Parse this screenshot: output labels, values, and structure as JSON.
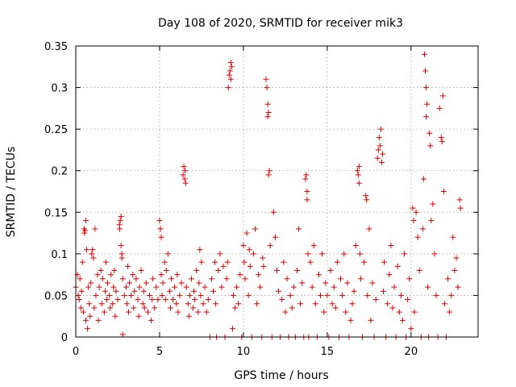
{
  "chart_data": {
    "type": "scatter",
    "title": "Day 108 of 2020, SRMTID for receiver mik3",
    "xlabel": "GPS time / hours",
    "ylabel": "SRMTID / TECUs",
    "xlim": [
      0,
      24
    ],
    "ylim": [
      0,
      0.35
    ],
    "xticks": [
      0,
      5,
      10,
      15,
      20
    ],
    "xtick_labels": [
      "0",
      "5",
      "10",
      "15",
      "20"
    ],
    "yticks": [
      0,
      0.05,
      0.1,
      0.15,
      0.2,
      0.25,
      0.3,
      0.35
    ],
    "ytick_labels": [
      "0",
      "0.05",
      "0.1",
      "0.15",
      "0.2",
      "0.25",
      "0.3",
      "0.35"
    ],
    "grid": true,
    "marker": "plus",
    "color": "#e00000",
    "series": [
      {
        "name": "SRMTID",
        "points": [
          [
            0.0,
            0.06
          ],
          [
            0.1,
            0.075
          ],
          [
            0.15,
            0.05
          ],
          [
            0.2,
            0.045
          ],
          [
            0.25,
            0.07
          ],
          [
            0.3,
            0.035
          ],
          [
            0.35,
            0.055
          ],
          [
            0.4,
            0.09
          ],
          [
            0.45,
            0.03
          ],
          [
            0.5,
            0.13
          ],
          [
            0.52,
            0.125
          ],
          [
            0.55,
            0.128
          ],
          [
            0.6,
            0.14
          ],
          [
            0.6,
            0.02
          ],
          [
            0.65,
            0.105
          ],
          [
            0.7,
            0.01
          ],
          [
            0.75,
            0.06
          ],
          [
            0.8,
            0.04
          ],
          [
            0.85,
            0.025
          ],
          [
            0.9,
            0.065
          ],
          [
            0.95,
            0.1
          ],
          [
            1.0,
            0.105
          ],
          [
            1.05,
            0.095
          ],
          [
            1.1,
            0.035
          ],
          [
            1.15,
            0.13
          ],
          [
            1.2,
            0.05
          ],
          [
            1.3,
            0.075
          ],
          [
            1.35,
            0.02
          ],
          [
            1.4,
            0.06
          ],
          [
            1.5,
            0.08
          ],
          [
            1.55,
            0.04
          ],
          [
            1.6,
            0.07
          ],
          [
            1.7,
            0.03
          ],
          [
            1.75,
            0.055
          ],
          [
            1.8,
            0.09
          ],
          [
            1.85,
            0.045
          ],
          [
            1.9,
            0.065
          ],
          [
            2.0,
            0.05
          ],
          [
            2.05,
            0.035
          ],
          [
            2.1,
            0.075
          ],
          [
            2.2,
            0.04
          ],
          [
            2.25,
            0.06
          ],
          [
            2.3,
            0.08
          ],
          [
            2.35,
            0.025
          ],
          [
            2.4,
            0.055
          ],
          [
            2.5,
            0.045
          ],
          [
            2.6,
            0.135
          ],
          [
            2.62,
            0.13
          ],
          [
            2.65,
            0.14
          ],
          [
            2.7,
            0.145
          ],
          [
            2.7,
            0.11
          ],
          [
            2.75,
            0.1
          ],
          [
            2.75,
            0.095
          ],
          [
            2.8,
            0.07
          ],
          [
            2.8,
            0.003
          ],
          [
            2.9,
            0.05
          ],
          [
            3.0,
            0.06
          ],
          [
            3.05,
            0.04
          ],
          [
            3.1,
            0.085
          ],
          [
            3.15,
            0.03
          ],
          [
            3.2,
            0.065
          ],
          [
            3.3,
            0.05
          ],
          [
            3.4,
            0.075
          ],
          [
            3.45,
            0.035
          ],
          [
            3.5,
            0.055
          ],
          [
            3.6,
            0.07
          ],
          [
            3.7,
            0.045
          ],
          [
            3.75,
            0.025
          ],
          [
            3.8,
            0.06
          ],
          [
            3.9,
            0.08
          ],
          [
            4.0,
            0.04
          ],
          [
            4.05,
            0.055
          ],
          [
            4.1,
            0.035
          ],
          [
            4.2,
            0.065
          ],
          [
            4.3,
            0.03
          ],
          [
            4.4,
            0.05
          ],
          [
            4.5,
            0.02
          ],
          [
            4.55,
            0.045
          ],
          [
            4.6,
            0.07
          ],
          [
            4.7,
            0.035
          ],
          [
            4.8,
            0.06
          ],
          [
            4.9,
            0.045
          ],
          [
            5.0,
            0.14
          ],
          [
            5.05,
            0.13
          ],
          [
            5.1,
            0.12
          ],
          [
            5.1,
            0.075
          ],
          [
            5.15,
            0.05
          ],
          [
            5.2,
            0.065
          ],
          [
            5.3,
            0.09
          ],
          [
            5.35,
            0.045
          ],
          [
            5.4,
            0.08
          ],
          [
            5.5,
            0.1
          ],
          [
            5.6,
            0.055
          ],
          [
            5.65,
            0.035
          ],
          [
            5.7,
            0.07
          ],
          [
            5.8,
            0.045
          ],
          [
            5.9,
            0.06
          ],
          [
            6.0,
            0.04
          ],
          [
            6.05,
            0.075
          ],
          [
            6.1,
            0.03
          ],
          [
            6.2,
            0.05
          ],
          [
            6.3,
            0.065
          ],
          [
            6.4,
            0.195
          ],
          [
            6.45,
            0.205
          ],
          [
            6.5,
            0.19
          ],
          [
            6.52,
            0.2
          ],
          [
            6.55,
            0.185
          ],
          [
            6.6,
            0.06
          ],
          [
            6.7,
            0.04
          ],
          [
            6.75,
            0.025
          ],
          [
            6.8,
            0.05
          ],
          [
            6.9,
            0.07
          ],
          [
            7.0,
            0.035
          ],
          [
            7.05,
            0.055
          ],
          [
            7.1,
            0.045
          ],
          [
            7.2,
            0.08
          ],
          [
            7.3,
            0.03
          ],
          [
            7.35,
            0.065
          ],
          [
            7.4,
            0.105
          ],
          [
            7.45,
            0.05
          ],
          [
            7.5,
            0.09
          ],
          [
            7.6,
            0.04
          ],
          [
            7.7,
            0.06
          ],
          [
            7.8,
            0.03
          ],
          [
            7.9,
            0.045
          ],
          [
            8.0,
            0.0
          ],
          [
            8.1,
            0.07
          ],
          [
            8.2,
            0.055
          ],
          [
            8.3,
            0.09
          ],
          [
            8.35,
            0.04
          ],
          [
            8.4,
            0.0
          ],
          [
            8.5,
            0.08
          ],
          [
            8.6,
            0.1
          ],
          [
            8.7,
            0.06
          ],
          [
            8.8,
            0.085
          ],
          [
            8.9,
            0.0
          ],
          [
            9.0,
            0.07
          ],
          [
            9.05,
            0.09
          ],
          [
            9.1,
            0.3
          ],
          [
            9.15,
            0.315
          ],
          [
            9.2,
            0.32
          ],
          [
            9.25,
            0.33
          ],
          [
            9.25,
            0.31
          ],
          [
            9.3,
            0.325
          ],
          [
            9.35,
            0.01
          ],
          [
            9.4,
            0.05
          ],
          [
            9.5,
            0.035
          ],
          [
            9.6,
            0.06
          ],
          [
            9.7,
            0.04
          ],
          [
            9.8,
            0.075
          ],
          [
            9.9,
            0.0
          ],
          [
            10.0,
            0.11
          ],
          [
            10.05,
            0.09
          ],
          [
            10.1,
            0.07
          ],
          [
            10.2,
            0.125
          ],
          [
            10.3,
            0.05
          ],
          [
            10.35,
            0.105
          ],
          [
            10.4,
            0.085
          ],
          [
            10.5,
            0.0
          ],
          [
            10.6,
            0.1
          ],
          [
            10.7,
            0.13
          ],
          [
            10.8,
            0.04
          ],
          [
            10.9,
            0.075
          ],
          [
            11.0,
            0.06
          ],
          [
            11.1,
            0.0
          ],
          [
            11.15,
            0.095
          ],
          [
            11.2,
            0.085
          ],
          [
            11.35,
            0.31
          ],
          [
            11.4,
            0.3
          ],
          [
            11.45,
            0.28
          ],
          [
            11.45,
            0.265
          ],
          [
            11.5,
            0.27
          ],
          [
            11.5,
            0.195
          ],
          [
            11.55,
            0.2
          ],
          [
            11.6,
            0.11
          ],
          [
            11.7,
            0.0
          ],
          [
            11.8,
            0.15
          ],
          [
            11.9,
            0.12
          ],
          [
            12.0,
            0.08
          ],
          [
            12.1,
            0.055
          ],
          [
            12.2,
            0.0
          ],
          [
            12.3,
            0.045
          ],
          [
            12.4,
            0.09
          ],
          [
            12.5,
            0.03
          ],
          [
            12.6,
            0.07
          ],
          [
            12.7,
            0.0
          ],
          [
            12.8,
            0.05
          ],
          [
            12.9,
            0.035
          ],
          [
            13.0,
            0.06
          ],
          [
            13.1,
            0.0
          ],
          [
            13.2,
            0.08
          ],
          [
            13.3,
            0.13
          ],
          [
            13.4,
            0.04
          ],
          [
            13.5,
            0.065
          ],
          [
            13.6,
            0.0
          ],
          [
            13.7,
            0.19
          ],
          [
            13.75,
            0.195
          ],
          [
            13.8,
            0.175
          ],
          [
            13.8,
            0.165
          ],
          [
            13.85,
            0.1
          ],
          [
            13.9,
            0.0
          ],
          [
            14.0,
            0.09
          ],
          [
            14.1,
            0.06
          ],
          [
            14.2,
            0.11
          ],
          [
            14.3,
            0.04
          ],
          [
            14.4,
            0.0
          ],
          [
            14.5,
            0.075
          ],
          [
            14.6,
            0.05
          ],
          [
            14.7,
            0.1
          ],
          [
            14.8,
            0.03
          ],
          [
            14.9,
            0.065
          ],
          [
            15.0,
            0.05
          ],
          [
            15.1,
            0.0
          ],
          [
            15.2,
            0.08
          ],
          [
            15.3,
            0.04
          ],
          [
            15.4,
            0.06
          ],
          [
            15.5,
            0.035
          ],
          [
            15.6,
            0.09
          ],
          [
            15.7,
            0.0
          ],
          [
            15.8,
            0.07
          ],
          [
            15.9,
            0.05
          ],
          [
            16.0,
            0.1
          ],
          [
            16.1,
            0.03
          ],
          [
            16.2,
            0.065
          ],
          [
            16.3,
            0.0
          ],
          [
            16.4,
            0.02
          ],
          [
            16.5,
            0.04
          ],
          [
            16.6,
            0.055
          ],
          [
            16.7,
            0.11
          ],
          [
            16.8,
            0.2
          ],
          [
            16.85,
            0.195
          ],
          [
            16.9,
            0.205
          ],
          [
            16.9,
            0.185
          ],
          [
            16.95,
            0.1
          ],
          [
            17.0,
            0.07
          ],
          [
            17.1,
            0.0
          ],
          [
            17.2,
            0.09
          ],
          [
            17.3,
            0.17
          ],
          [
            17.35,
            0.165
          ],
          [
            17.4,
            0.05
          ],
          [
            17.5,
            0.13
          ],
          [
            17.6,
            0.02
          ],
          [
            17.7,
            0.065
          ],
          [
            17.8,
            0.0
          ],
          [
            17.9,
            0.045
          ],
          [
            18.0,
            0.215
          ],
          [
            18.05,
            0.225
          ],
          [
            18.1,
            0.24
          ],
          [
            18.15,
            0.23
          ],
          [
            18.2,
            0.25
          ],
          [
            18.25,
            0.21
          ],
          [
            18.3,
            0.22
          ],
          [
            18.35,
            0.055
          ],
          [
            18.4,
            0.09
          ],
          [
            18.5,
            0.0
          ],
          [
            18.6,
            0.04
          ],
          [
            18.7,
            0.075
          ],
          [
            18.8,
            0.11
          ],
          [
            18.9,
            0.035
          ],
          [
            19.0,
            0.06
          ],
          [
            19.1,
            0.0
          ],
          [
            19.2,
            0.085
          ],
          [
            19.3,
            0.03
          ],
          [
            19.4,
            0.05
          ],
          [
            19.5,
            0.02
          ],
          [
            19.6,
            0.1
          ],
          [
            19.7,
            0.0
          ],
          [
            19.8,
            0.045
          ],
          [
            19.9,
            0.07
          ],
          [
            20.0,
            0.01
          ],
          [
            20.1,
            0.155
          ],
          [
            20.15,
            0.14
          ],
          [
            20.2,
            0.03
          ],
          [
            20.3,
            0.15
          ],
          [
            20.4,
            0.12
          ],
          [
            20.5,
            0.08
          ],
          [
            20.6,
            0.0
          ],
          [
            20.7,
            0.13
          ],
          [
            20.75,
            0.19
          ],
          [
            20.8,
            0.34
          ],
          [
            20.85,
            0.32
          ],
          [
            20.9,
            0.3
          ],
          [
            20.9,
            0.265
          ],
          [
            20.95,
            0.28
          ],
          [
            21.0,
            0.06
          ],
          [
            21.05,
            0.0
          ],
          [
            21.1,
            0.245
          ],
          [
            21.15,
            0.23
          ],
          [
            21.2,
            0.14
          ],
          [
            21.3,
            0.16
          ],
          [
            21.4,
            0.1
          ],
          [
            21.5,
            0.05
          ],
          [
            21.6,
            0.0
          ],
          [
            21.7,
            0.275
          ],
          [
            21.8,
            0.24
          ],
          [
            21.85,
            0.235
          ],
          [
            21.9,
            0.29
          ],
          [
            21.95,
            0.175
          ],
          [
            22.0,
            0.04
          ],
          [
            22.1,
            0.0
          ],
          [
            22.2,
            0.07
          ],
          [
            22.3,
            0.03
          ],
          [
            22.4,
            0.05
          ],
          [
            22.5,
            0.12
          ],
          [
            22.6,
            0.08
          ],
          [
            22.7,
            0.095
          ],
          [
            22.8,
            0.06
          ],
          [
            22.9,
            0.165
          ],
          [
            22.95,
            0.155
          ]
        ]
      }
    ]
  }
}
